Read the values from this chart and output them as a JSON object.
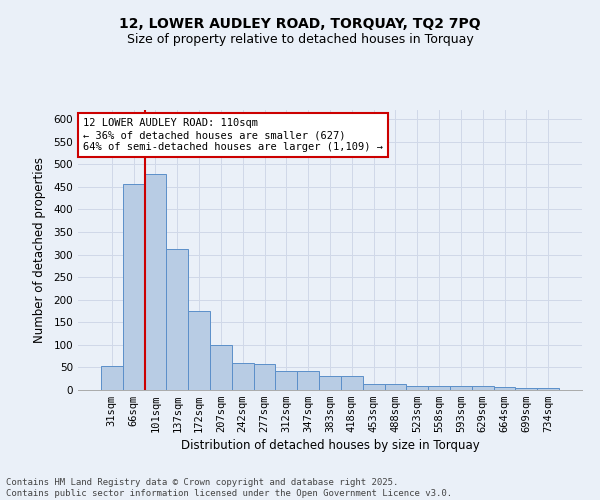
{
  "title": "12, LOWER AUDLEY ROAD, TORQUAY, TQ2 7PQ",
  "subtitle": "Size of property relative to detached houses in Torquay",
  "xlabel": "Distribution of detached houses by size in Torquay",
  "ylabel": "Number of detached properties",
  "categories": [
    "31sqm",
    "66sqm",
    "101sqm",
    "137sqm",
    "172sqm",
    "207sqm",
    "242sqm",
    "277sqm",
    "312sqm",
    "347sqm",
    "383sqm",
    "418sqm",
    "453sqm",
    "488sqm",
    "523sqm",
    "558sqm",
    "593sqm",
    "629sqm",
    "664sqm",
    "699sqm",
    "734sqm"
  ],
  "values": [
    54,
    456,
    479,
    313,
    175,
    100,
    59,
    58,
    43,
    43,
    30,
    30,
    14,
    14,
    9,
    9,
    9,
    8,
    7,
    4,
    4
  ],
  "bar_color": "#b8cce4",
  "bar_edge_color": "#5b8fc9",
  "annotation_text": "12 LOWER AUDLEY ROAD: 110sqm\n← 36% of detached houses are smaller (627)\n64% of semi-detached houses are larger (1,109) →",
  "annotation_box_color": "#ffffff",
  "annotation_box_edge_color": "#cc0000",
  "red_line_color": "#cc0000",
  "grid_color": "#d0d8e8",
  "bg_color": "#eaf0f8",
  "ylim": [
    0,
    620
  ],
  "yticks": [
    0,
    50,
    100,
    150,
    200,
    250,
    300,
    350,
    400,
    450,
    500,
    550,
    600
  ],
  "footer_text": "Contains HM Land Registry data © Crown copyright and database right 2025.\nContains public sector information licensed under the Open Government Licence v3.0.",
  "title_fontsize": 10,
  "subtitle_fontsize": 9,
  "axis_label_fontsize": 8.5,
  "tick_fontsize": 7.5,
  "annotation_fontsize": 7.5,
  "footer_fontsize": 6.5
}
